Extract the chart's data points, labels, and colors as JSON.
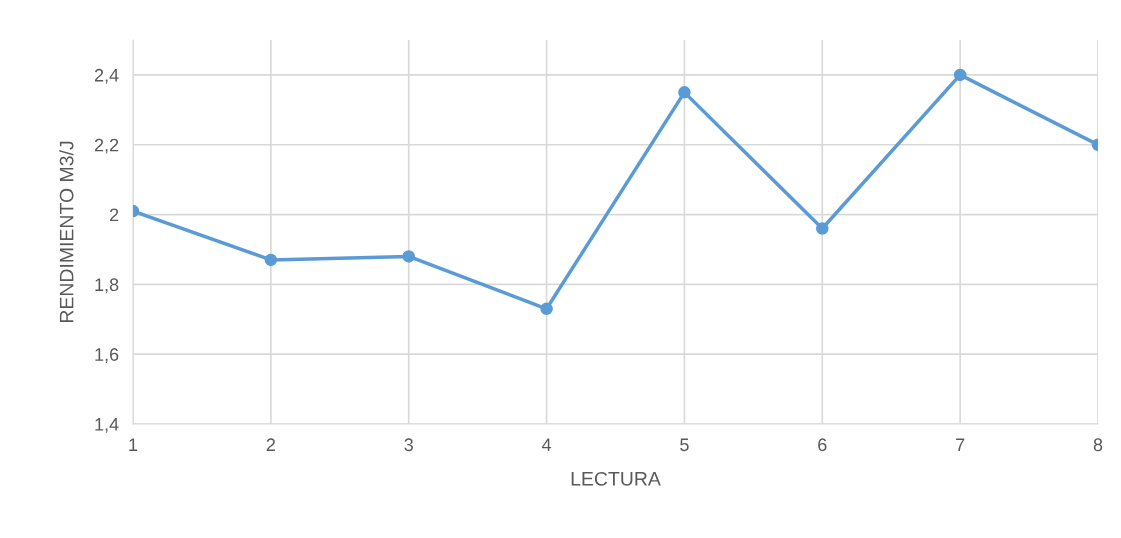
{
  "chart_data": {
    "type": "line",
    "xlabel": "LECTURA",
    "ylabel": "RENDIMIENTO M3/J",
    "x": [
      1,
      2,
      3,
      4,
      5,
      6,
      7,
      8
    ],
    "series": [
      {
        "color": "#5b9bd5",
        "values": [
          2.01,
          1.87,
          1.88,
          1.73,
          2.35,
          1.96,
          2.4,
          2.2
        ]
      }
    ],
    "xlim": [
      1,
      8
    ],
    "xticks": [
      1,
      2,
      3,
      4,
      5,
      6,
      7,
      8
    ],
    "ylim": [
      1.4,
      2.5
    ],
    "yticks": [
      {
        "value": 1.4,
        "label": "1,4"
      },
      {
        "value": 1.6,
        "label": "1,6"
      },
      {
        "value": 1.8,
        "label": "1,8"
      },
      {
        "value": 2,
        "label": "2"
      },
      {
        "value": 2.2,
        "label": "2,2"
      },
      {
        "value": 2.4,
        "label": "2,4"
      }
    ],
    "grid": true,
    "marker": "circle",
    "line_style": "solid"
  }
}
